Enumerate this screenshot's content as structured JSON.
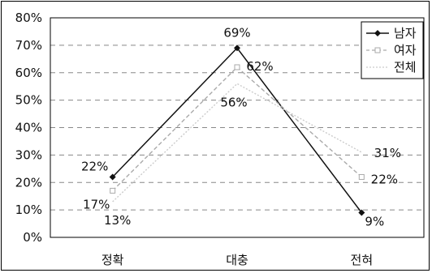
{
  "chart_data": {
    "type": "line",
    "title": "",
    "xlabel": "",
    "ylabel": "",
    "categories": [
      "정확",
      "대충",
      "전혀"
    ],
    "ylim": [
      0,
      80
    ],
    "y_ticks": [
      "0%",
      "10%",
      "20%",
      "30%",
      "40%",
      "50%",
      "60%",
      "70%",
      "80%"
    ],
    "grid": true,
    "legend_position": "top-right",
    "series": [
      {
        "name": "남자",
        "values": [
          22,
          69,
          9
        ],
        "labels": [
          "22%",
          "69%",
          "9%"
        ],
        "color": "#111111",
        "marker": "diamond",
        "style": "solid"
      },
      {
        "name": "여자",
        "values": [
          17,
          62,
          22
        ],
        "labels": [
          "17%",
          "62%",
          "22%"
        ],
        "color": "#aaaaaa",
        "marker": "square",
        "style": "dashed"
      },
      {
        "name": "전체",
        "values": [
          13,
          56,
          31
        ],
        "labels": [
          "13%",
          "56%",
          "31%"
        ],
        "color": "#cccccc",
        "marker": "none",
        "style": "dotted"
      }
    ]
  }
}
